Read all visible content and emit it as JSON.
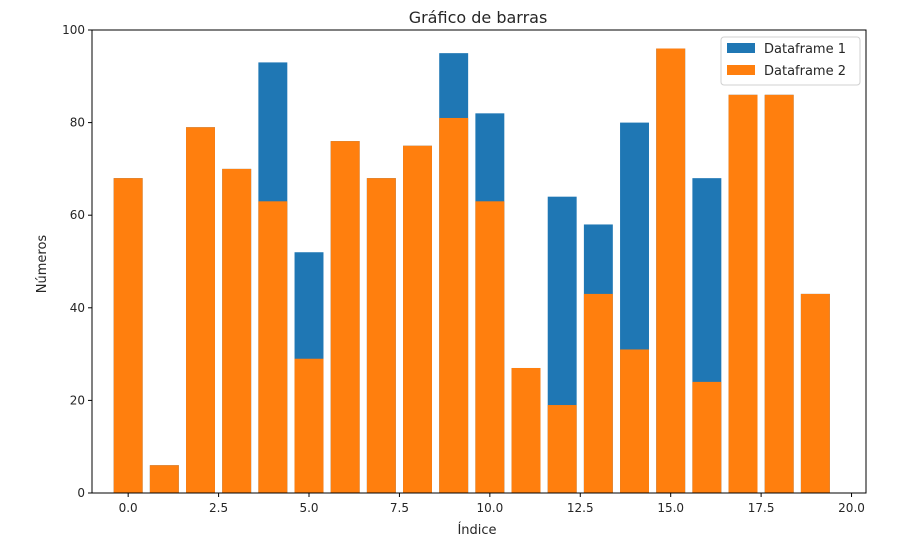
{
  "chart_data": {
    "type": "bar",
    "title": "Gráfico de barras",
    "xlabel": "Índice",
    "ylabel": "Números",
    "xlim": [
      -1,
      20.4
    ],
    "ylim": [
      0,
      100
    ],
    "xticks": [
      "0.0",
      "2.5",
      "5.0",
      "7.5",
      "10.0",
      "12.5",
      "15.0",
      "17.5",
      "20.0"
    ],
    "yticks": [
      "0",
      "20",
      "40",
      "60",
      "80",
      "100"
    ],
    "x": [
      0,
      1,
      2,
      3,
      4,
      5,
      6,
      7,
      8,
      9,
      10,
      11,
      12,
      13,
      14,
      15,
      16,
      17,
      18,
      19
    ],
    "series": [
      {
        "name": "Dataframe 1",
        "color": "#1f77b4",
        "values": [
          68,
          6,
          79,
          70,
          93,
          52,
          76,
          68,
          75,
          95,
          82,
          27,
          64,
          58,
          80,
          96,
          68,
          86,
          86,
          43
        ]
      },
      {
        "name": "Dataframe 2",
        "color": "#ff7f0e",
        "values": [
          68,
          6,
          79,
          70,
          63,
          29,
          76,
          68,
          75,
          81,
          63,
          27,
          19,
          43,
          31,
          96,
          24,
          86,
          86,
          43
        ]
      }
    ],
    "grid": false,
    "legend_position": "top-right"
  }
}
